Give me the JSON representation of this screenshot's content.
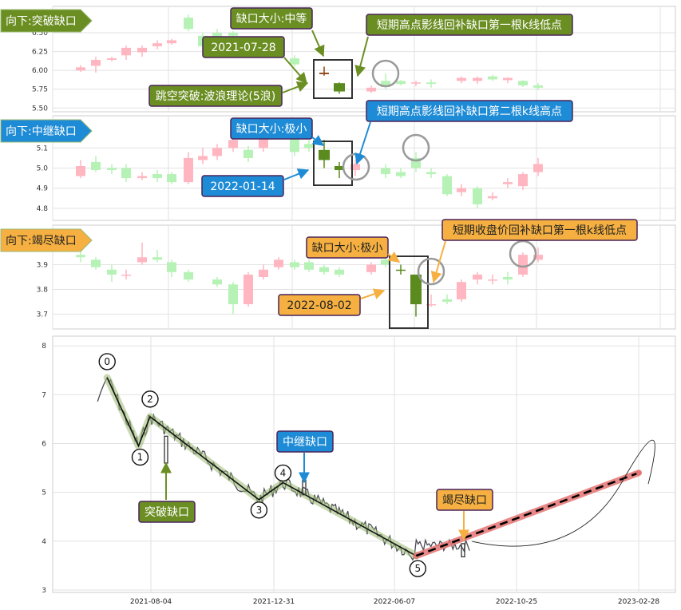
{
  "chart_data": [
    {
      "type": "candlestick",
      "title": "向下:突破缺口",
      "ylim": [
        5.45,
        6.85
      ],
      "yticks": [
        "5.50",
        "5.75",
        "6.00",
        "6.25",
        "6.50"
      ],
      "ytick_values": [
        5.5,
        5.75,
        6.0,
        6.25,
        6.5
      ],
      "annotations": [
        {
          "id": "p1-size",
          "text": "缺口大小:中等",
          "style": "green"
        },
        {
          "id": "p1-date",
          "text": "2021-07-28",
          "style": "green"
        },
        {
          "id": "p1-theory",
          "text": "跳空突破:波浪理论(5浪)",
          "style": "green"
        },
        {
          "id": "p1-fill",
          "text": "短期高点影线回补缺口第一根k线低点",
          "style": "green"
        }
      ]
    },
    {
      "type": "candlestick",
      "title": "向下:中继缺口",
      "ylim": [
        4.74,
        5.26
      ],
      "yticks": [
        "4.8",
        "4.9",
        "5.0",
        "5.1"
      ],
      "ytick_values": [
        4.8,
        4.9,
        5.0,
        5.1
      ],
      "annotations": [
        {
          "id": "p2-size",
          "text": "缺口大小:极小",
          "style": "blue"
        },
        {
          "id": "p2-date",
          "text": "2022-01-14",
          "style": "blue"
        },
        {
          "id": "p2-fill",
          "text": "短期高点影线回补缺口第二根k线高点",
          "style": "blue"
        }
      ]
    },
    {
      "type": "candlestick",
      "title": "向下:竭尽缺口",
      "ylim": [
        3.64,
        4.06
      ],
      "yticks": [
        "3.7",
        "3.8",
        "3.9"
      ],
      "ytick_values": [
        3.7,
        3.8,
        3.9
      ],
      "annotations": [
        {
          "id": "p3-size",
          "text": "缺口大小:极小",
          "style": "orange"
        },
        {
          "id": "p3-date",
          "text": "2022-08-02",
          "style": "orange"
        },
        {
          "id": "p3-fill",
          "text": "短期收盘价回补缺口第一根k线低点",
          "style": "orange"
        }
      ]
    },
    {
      "type": "line",
      "ylim": [
        2.95,
        8.2
      ],
      "yticks": [
        "3",
        "4",
        "5",
        "6",
        "7",
        "8"
      ],
      "ytick_values": [
        3,
        4,
        5,
        6,
        7,
        8
      ],
      "xticks": [
        "2021-08-04",
        "2021-12-31",
        "2022-06-07",
        "2022-10-25",
        "2023-02-28"
      ],
      "wave_points": [
        {
          "label": "0",
          "date": "2021-06-12",
          "value": 7.35
        },
        {
          "label": "1",
          "date": "2021-07-20",
          "value": 5.95
        },
        {
          "label": "2",
          "date": "2021-08-03",
          "value": 6.55
        },
        {
          "label": "3",
          "date": "2021-12-13",
          "value": 4.85
        },
        {
          "label": "4",
          "date": "2022-01-12",
          "value": 5.2
        },
        {
          "label": "5",
          "date": "2022-07-02",
          "value": 3.7
        }
      ],
      "forecast": {
        "start_date": "2022-07-02",
        "start_value": 3.7,
        "end_date": "2023-02-28",
        "end_value": 5.4
      },
      "gap_labels": [
        {
          "id": "gap-breakaway",
          "text": "突破缺口",
          "style": "green"
        },
        {
          "id": "gap-runaway",
          "text": "中继缺口",
          "style": "blue"
        },
        {
          "id": "gap-exhaustion",
          "text": "竭尽缺口",
          "style": "orange"
        }
      ]
    }
  ],
  "colors": {
    "green_fill": "#6b8e23",
    "blue_fill": "#1e8bd6",
    "orange_fill": "#f5b041",
    "label_border": "#4a235a",
    "up_candle": "#ffb6c1",
    "down_candle": "#b6f2b6",
    "gap_up": "#8b4513",
    "gap_down": "#5b8a1e",
    "wave_line": "#111111",
    "wave_band": "#9ab973",
    "forecast_band": "#e57373"
  }
}
